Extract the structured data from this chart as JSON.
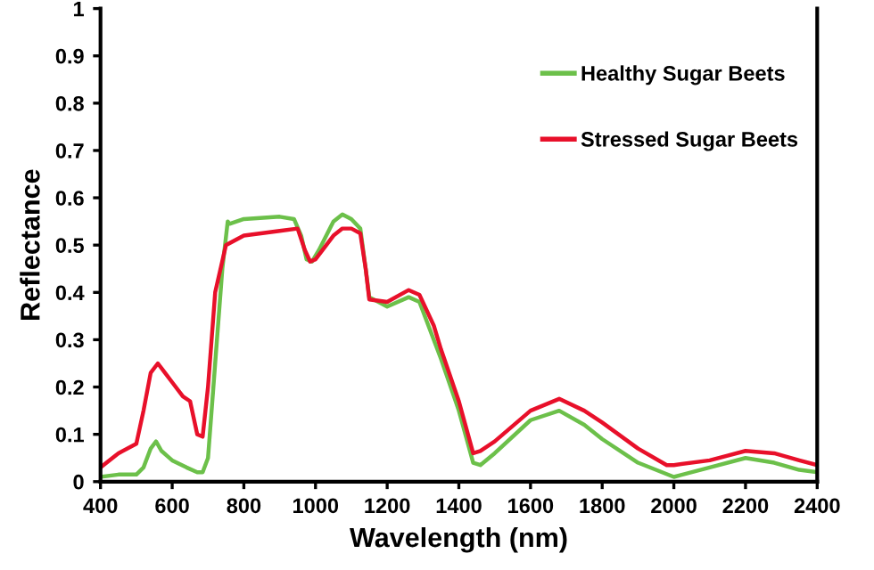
{
  "chart_data": {
    "type": "line",
    "xlabel": "Wavelength (nm)",
    "ylabel": "Reflectance",
    "xlim": [
      400,
      2400
    ],
    "ylim": [
      0,
      1
    ],
    "xticks": [
      400,
      600,
      800,
      1000,
      1200,
      1400,
      1600,
      1800,
      2000,
      2200,
      2400
    ],
    "yticks": [
      0,
      0.1,
      0.2,
      0.3,
      0.4,
      0.5,
      0.6,
      0.7,
      0.8,
      0.9,
      1
    ],
    "grid": false,
    "legend": "top right",
    "marker": "none",
    "line_style": "solid",
    "series": [
      {
        "name": "Healthy Sugar Beets",
        "color": "#6cc04a",
        "x": [
          400,
          450,
          500,
          520,
          540,
          555,
          570,
          600,
          640,
          670,
          685,
          700,
          720,
          740,
          755,
          760,
          800,
          900,
          940,
          960,
          975,
          990,
          1010,
          1050,
          1075,
          1100,
          1125,
          1140,
          1150,
          1200,
          1260,
          1290,
          1330,
          1350,
          1400,
          1440,
          1460,
          1500,
          1600,
          1680,
          1750,
          1800,
          1900,
          2000,
          2100,
          2200,
          2280,
          2350,
          2400
        ],
        "values": [
          0.01,
          0.015,
          0.015,
          0.03,
          0.07,
          0.085,
          0.065,
          0.045,
          0.03,
          0.02,
          0.02,
          0.05,
          0.25,
          0.45,
          0.55,
          0.545,
          0.555,
          0.56,
          0.555,
          0.52,
          0.47,
          0.465,
          0.49,
          0.55,
          0.565,
          0.555,
          0.535,
          0.45,
          0.39,
          0.37,
          0.39,
          0.38,
          0.3,
          0.26,
          0.15,
          0.04,
          0.035,
          0.06,
          0.13,
          0.15,
          0.12,
          0.09,
          0.04,
          0.01,
          0.03,
          0.05,
          0.04,
          0.025,
          0.02
        ]
      },
      {
        "name": "Stressed Sugar Beets",
        "color": "#e8102a",
        "x": [
          400,
          450,
          500,
          520,
          540,
          560,
          580,
          600,
          630,
          650,
          670,
          685,
          700,
          720,
          750,
          800,
          900,
          950,
          970,
          985,
          1000,
          1050,
          1075,
          1100,
          1125,
          1140,
          1150,
          1200,
          1260,
          1290,
          1330,
          1350,
          1400,
          1440,
          1460,
          1500,
          1600,
          1680,
          1750,
          1800,
          1900,
          1980,
          2000,
          2100,
          2200,
          2280,
          2350,
          2400
        ],
        "values": [
          0.03,
          0.06,
          0.08,
          0.15,
          0.23,
          0.25,
          0.23,
          0.21,
          0.18,
          0.17,
          0.1,
          0.095,
          0.2,
          0.4,
          0.5,
          0.52,
          0.53,
          0.535,
          0.49,
          0.465,
          0.47,
          0.52,
          0.535,
          0.535,
          0.525,
          0.45,
          0.385,
          0.38,
          0.405,
          0.395,
          0.33,
          0.28,
          0.17,
          0.06,
          0.065,
          0.085,
          0.15,
          0.175,
          0.15,
          0.125,
          0.07,
          0.035,
          0.035,
          0.045,
          0.065,
          0.06,
          0.045,
          0.035
        ]
      }
    ]
  }
}
